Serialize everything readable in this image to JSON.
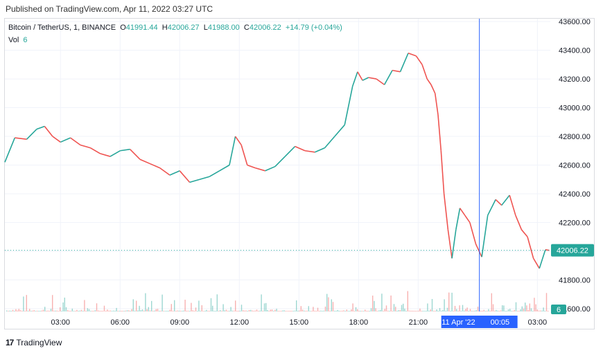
{
  "published": "Published on TradingView.com, Apr 11, 2022 03:27 UTC",
  "legend": {
    "symbol": "Bitcoin / TetherUS, 1, BINANCE",
    "o_label": "O",
    "o": "41991.44",
    "h_label": "H",
    "h": "42006.27",
    "l_label": "L",
    "l": "41988.00",
    "c_label": "C",
    "c": "42006.22",
    "change": "+14.79 (+0.04%)",
    "vol_label": "Vol",
    "vol": "6"
  },
  "footer": {
    "brand": "TradingView",
    "logo": "17"
  },
  "colors": {
    "up": "#26a69a",
    "down": "#ef5350",
    "crosshair": "#2962ff",
    "grid": "#f0f3fa"
  },
  "chart_data": {
    "type": "line",
    "price_axis": {
      "ticks": [
        41600,
        41800,
        42000,
        42200,
        42400,
        42600,
        42800,
        43000,
        43200,
        43400,
        43600
      ],
      "tick_labels": [
        "41600.00",
        "41800.00",
        "42000.00",
        "42200.00",
        "42400.00",
        "42600.00",
        "42800.00",
        "43000.00",
        "43200.00",
        "43400.00",
        "43600.00"
      ],
      "ylim": [
        41580,
        43620
      ]
    },
    "time_axis": {
      "tick_labels": [
        "03:00",
        "06:00",
        "09:00",
        "12:00",
        "15:00",
        "18:00",
        "21:00",
        "00:05",
        "03:00"
      ],
      "tick_hours": [
        3,
        6,
        9,
        12,
        15,
        18,
        21,
        24.08,
        27
      ],
      "xlim": [
        0.2,
        27.65
      ]
    },
    "crosshair": {
      "hour": 24.08,
      "date_label": "11 Apr '22",
      "time_label": "00:05"
    },
    "last_price": {
      "value": 42006.22,
      "label": "42006.22"
    },
    "last_volume": {
      "value": 6,
      "label": "6"
    },
    "series": [
      {
        "hours": [
          0.2,
          0.7,
          1.3,
          1.8,
          2.2,
          2.6,
          3.0,
          3.5,
          4.0,
          4.5,
          5.0,
          5.5,
          6.0,
          6.5,
          7.0,
          7.5,
          8.0,
          8.5,
          9.0,
          9.5,
          10.0,
          10.5,
          11.0,
          11.5,
          11.8,
          12.1,
          12.4,
          12.8,
          13.3,
          13.8,
          14.3,
          14.8,
          15.3,
          15.8,
          16.3,
          16.8,
          17.3,
          17.7,
          17.95,
          18.2,
          18.5,
          18.9,
          19.3,
          19.7,
          20.1,
          20.5,
          20.9,
          21.2,
          21.45,
          21.65,
          21.85,
          22.0,
          22.15,
          22.3,
          22.5,
          22.7,
          22.9,
          23.1,
          23.35,
          23.6,
          23.9,
          24.2,
          24.5,
          24.9,
          25.2,
          25.6,
          25.9,
          26.2,
          26.5,
          26.8,
          27.1,
          27.4,
          27.6
        ],
        "values": [
          42620,
          42790,
          42780,
          42850,
          42870,
          42800,
          42760,
          42790,
          42740,
          42720,
          42680,
          42660,
          42700,
          42710,
          42640,
          42610,
          42580,
          42530,
          42560,
          42480,
          42500,
          42520,
          42560,
          42600,
          42800,
          42740,
          42600,
          42580,
          42560,
          42590,
          42660,
          42730,
          42700,
          42690,
          42720,
          42800,
          42880,
          43150,
          43250,
          43190,
          43210,
          43200,
          43160,
          43260,
          43250,
          43380,
          43360,
          43300,
          43200,
          43160,
          43100,
          42950,
          42700,
          42400,
          42150,
          41950,
          42150,
          42300,
          42250,
          42200,
          42050,
          41960,
          42250,
          42360,
          42320,
          42390,
          42250,
          42150,
          42100,
          41950,
          41880,
          42010,
          42006
        ]
      }
    ],
    "volume": {
      "max_label": "6"
    }
  }
}
